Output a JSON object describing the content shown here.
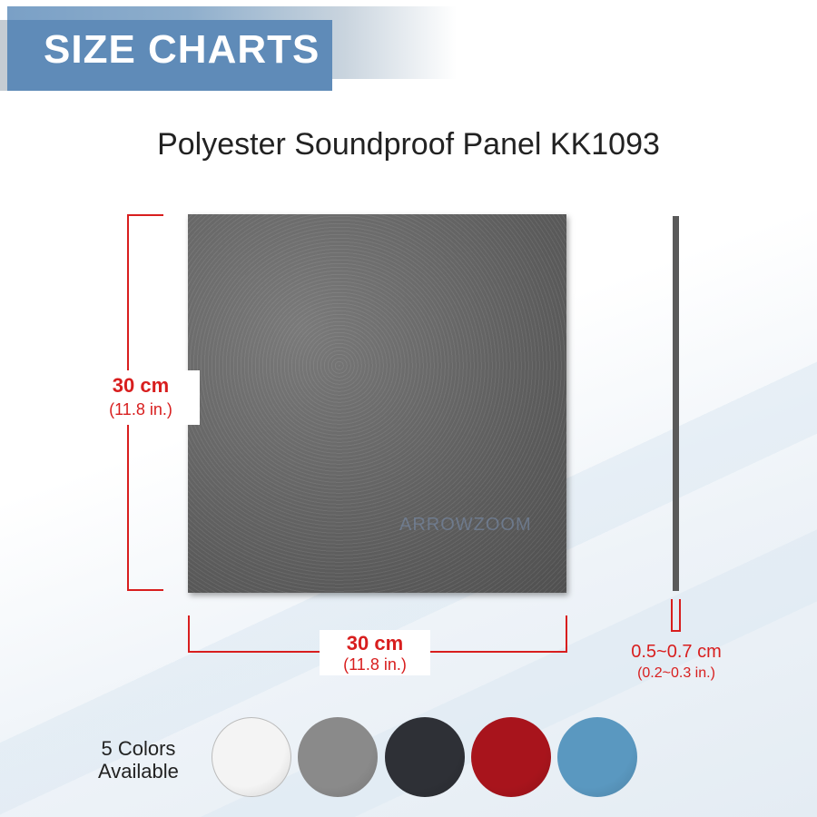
{
  "banner": {
    "label": "SIZE CHARTS"
  },
  "title": "Polyester Soundproof Panel KK1093",
  "watermark": "ARROWZOOM",
  "dimensions": {
    "height": {
      "metric": "30 cm",
      "imperial": "(11.8 in.)"
    },
    "width": {
      "metric": "30 cm",
      "imperial": "(11.8 in.)"
    },
    "thickness": {
      "metric": "0.5~0.7 cm",
      "imperial": "(0.2~0.3 in.)"
    }
  },
  "colors": {
    "label_line1": "5 Colors",
    "label_line2": "Available",
    "swatches": [
      "#f4f4f4",
      "#8a8a8a",
      "#2e3036",
      "#a8141c",
      "#5a98c0"
    ]
  },
  "accent": "#d81e1e"
}
